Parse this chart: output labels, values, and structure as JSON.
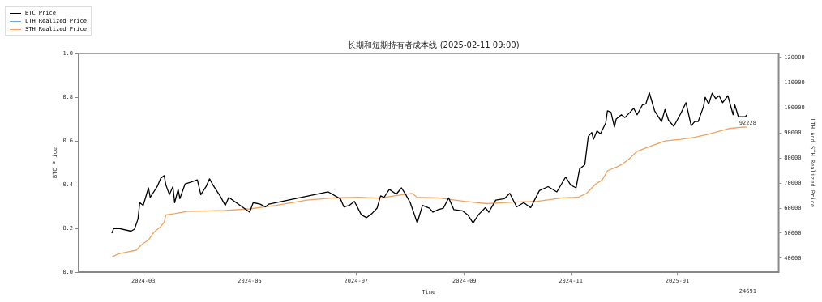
{
  "chart_data": {
    "type": "line",
    "title": "长期和短期持有者成本线 (2025-02-11 09:00)",
    "xlabel": "Time",
    "ylabel": "BTC Price",
    "y2label": "LTH And STH Realized Price",
    "xlim": [
      "2024-01-24",
      "2025-02-28"
    ],
    "xticks": [
      "2024-03",
      "2024-05",
      "2024-07",
      "2024-09",
      "2024-11",
      "2025-01"
    ],
    "ylim": [
      0,
      1
    ],
    "yticks": [
      {
        "value": 0,
        "label": "0.0"
      },
      {
        "value": 0.2,
        "label": "0.2"
      },
      {
        "value": 0.4,
        "label": "0.4"
      },
      {
        "value": 0.6,
        "label": "0.6"
      },
      {
        "value": 0.8,
        "label": "0.8"
      },
      {
        "value": 1,
        "label": "1.0"
      }
    ],
    "y2lim": [
      34400,
      121800
    ],
    "y2ticks": [
      40000,
      50000,
      60000,
      70000,
      80000,
      90000,
      100000,
      110000,
      120000
    ],
    "legend": "top left",
    "marker": "none",
    "line_style": "solid",
    "annotations": [
      "92228",
      "24691"
    ],
    "series": [
      {
        "name": "BTC Price",
        "color": "#000000",
        "axis": "y2",
        "x": [
          "2024-02-12",
          "2024-02-13",
          "2024-02-16",
          "2024-02-23",
          "2024-02-25",
          "2024-02-27",
          "2024-02-28",
          "2024-03-01",
          "2024-03-04",
          "2024-03-05",
          "2024-03-09",
          "2024-03-11",
          "2024-03-13",
          "2024-03-14",
          "2024-03-16",
          "2024-03-18",
          "2024-03-19",
          "2024-03-21",
          "2024-03-22",
          "2024-03-25",
          "2024-03-28",
          "2024-03-30",
          "2024-04-01",
          "2024-04-03",
          "2024-04-06",
          "2024-04-08",
          "2024-04-10",
          "2024-04-14",
          "2024-04-17",
          "2024-04-19",
          "2024-05-01",
          "2024-05-03",
          "2024-05-07",
          "2024-05-10",
          "2024-05-12",
          "2024-06-15",
          "2024-06-22",
          "2024-06-24",
          "2024-06-27",
          "2024-06-30",
          "2024-07-04",
          "2024-07-07",
          "2024-07-10",
          "2024-07-13",
          "2024-07-15",
          "2024-07-17",
          "2024-07-20",
          "2024-07-24",
          "2024-07-27",
          "2024-07-29",
          "2024-08-01",
          "2024-08-05",
          "2024-08-08",
          "2024-08-12",
          "2024-08-14",
          "2024-08-17",
          "2024-08-20",
          "2024-08-23",
          "2024-08-26",
          "2024-08-31",
          "2024-09-03",
          "2024-09-06",
          "2024-09-09",
          "2024-09-13",
          "2024-09-15",
          "2024-09-19",
          "2024-09-24",
          "2024-09-27",
          "2024-10-01",
          "2024-10-05",
          "2024-10-09",
          "2024-10-14",
          "2024-10-19",
          "2024-10-24",
          "2024-10-29",
          "2024-11-01",
          "2024-11-04",
          "2024-11-06",
          "2024-11-09",
          "2024-11-11",
          "2024-11-13",
          "2024-11-14",
          "2024-11-16",
          "2024-11-18",
          "2024-11-21",
          "2024-11-22",
          "2024-11-24",
          "2024-11-26",
          "2024-11-27",
          "2024-11-30",
          "2024-12-02",
          "2024-12-05",
          "2024-12-07",
          "2024-12-09",
          "2024-12-12",
          "2024-12-14",
          "2024-12-16",
          "2024-12-19",
          "2024-12-21",
          "2024-12-23",
          "2024-12-25",
          "2024-12-27",
          "2024-12-30",
          "2025-01-03",
          "2025-01-06",
          "2025-01-09",
          "2025-01-11",
          "2025-01-13",
          "2025-01-16",
          "2025-01-17",
          "2025-01-19",
          "2025-01-21",
          "2025-01-23",
          "2025-01-25",
          "2025-01-27",
          "2025-01-30",
          "2025-02-02",
          "2025-02-03",
          "2025-02-05",
          "2025-02-09",
          "2025-02-10"
        ],
        "values": [
          50000,
          51800,
          51900,
          50800,
          51600,
          55700,
          62200,
          61100,
          68100,
          64300,
          68600,
          71900,
          73000,
          69200,
          65400,
          68600,
          62200,
          67500,
          63800,
          69700,
          70300,
          70800,
          71300,
          65400,
          68600,
          71700,
          69200,
          64900,
          61100,
          64300,
          58400,
          62200,
          61600,
          60500,
          61600,
          66500,
          63700,
          60500,
          61100,
          62700,
          57300,
          56200,
          57800,
          60000,
          64900,
          64300,
          67500,
          65600,
          68100,
          65900,
          62200,
          54100,
          61100,
          60000,
          58400,
          59400,
          60000,
          64100,
          59400,
          58900,
          57300,
          54100,
          57300,
          60200,
          58400,
          63200,
          63800,
          65900,
          60500,
          62200,
          60200,
          67000,
          68600,
          66500,
          72400,
          69200,
          68100,
          75600,
          77300,
          88600,
          90200,
          87500,
          90800,
          89700,
          94000,
          98900,
          98300,
          92400,
          95600,
          97300,
          96200,
          98300,
          99900,
          97300,
          101200,
          101600,
          106100,
          98900,
          96700,
          94600,
          99400,
          95100,
          92700,
          97800,
          102100,
          92900,
          94600,
          94600,
          100500,
          104300,
          101600,
          105900,
          103800,
          104900,
          102100,
          104900,
          97300,
          101200,
          96500,
          96500,
          97300
        ]
      },
      {
        "name": "LTH Realized Price",
        "color": "#6fa8dc",
        "axis": "y2"
      },
      {
        "name": "STH Realized Price",
        "color": "#f0a35e",
        "axis": "y2",
        "x": [
          "2024-02-12",
          "2024-02-16",
          "2024-02-21",
          "2024-02-26",
          "2024-02-29",
          "2024-03-04",
          "2024-03-07",
          "2024-03-11",
          "2024-03-13",
          "2024-03-14",
          "2024-03-19",
          "2024-03-26",
          "2024-04-08",
          "2024-04-17",
          "2024-05-01",
          "2024-05-16",
          "2024-06-03",
          "2024-06-18",
          "2024-07-02",
          "2024-07-14",
          "2024-08-02",
          "2024-08-05",
          "2024-08-17",
          "2024-09-01",
          "2024-09-14",
          "2024-09-29",
          "2024-10-13",
          "2024-10-27",
          "2024-11-05",
          "2024-11-10",
          "2024-11-15",
          "2024-11-19",
          "2024-11-22",
          "2024-11-30",
          "2024-12-04",
          "2024-12-09",
          "2024-12-17",
          "2024-12-25",
          "2025-01-03",
          "2025-01-11",
          "2025-01-20",
          "2025-01-31",
          "2025-02-08",
          "2025-02-10"
        ],
        "values": [
          40500,
          41800,
          42500,
          43200,
          45400,
          47300,
          50300,
          52600,
          54400,
          57300,
          57800,
          58700,
          58900,
          59100,
          59700,
          61100,
          63200,
          64100,
          64300,
          64000,
          65900,
          64300,
          64100,
          62700,
          61800,
          62400,
          62700,
          64100,
          64300,
          65900,
          69500,
          71300,
          74900,
          77300,
          79400,
          82700,
          84800,
          86800,
          87500,
          88300,
          89700,
          91800,
          92400,
          92228
        ]
      }
    ]
  }
}
